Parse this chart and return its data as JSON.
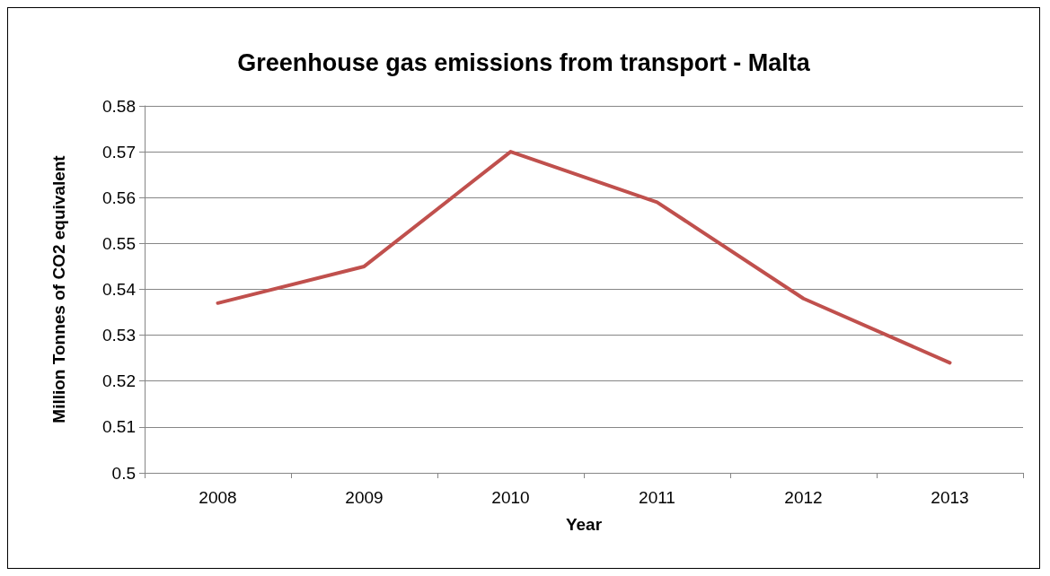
{
  "chart_data": {
    "type": "line",
    "title": "Greenhouse gas emissions from transport - Malta",
    "xlabel": "Year",
    "ylabel": "Million Tonnes of CO2 equivalent",
    "categories": [
      "2008",
      "2009",
      "2010",
      "2011",
      "2012",
      "2013"
    ],
    "series": [
      {
        "color": "#c0504d",
        "values": [
          0.537,
          0.545,
          0.57,
          0.559,
          0.538,
          0.524
        ]
      }
    ],
    "ylim": [
      0.5,
      0.58
    ],
    "yticks": [
      0.5,
      0.51,
      0.52,
      0.53,
      0.54,
      0.55,
      0.56,
      0.57,
      0.58
    ],
    "grid": "y",
    "marker": "none",
    "line_style": "solid"
  }
}
